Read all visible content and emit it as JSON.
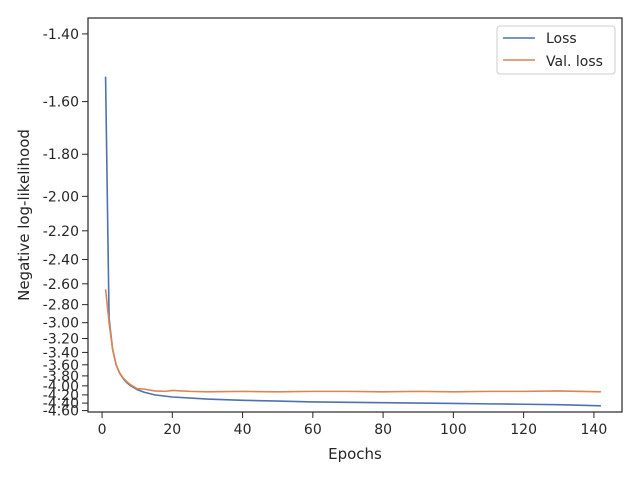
{
  "chart_data": {
    "type": "line",
    "xlabel": "Epochs",
    "ylabel": "Negative log-likelihood",
    "y_scale": "reciprocal",
    "xlim": [
      -4,
      148
    ],
    "ylim": [
      -4.64,
      -1.36
    ],
    "x_ticks": [
      0,
      20,
      40,
      60,
      80,
      100,
      120,
      140
    ],
    "x_tick_labels": [
      "0",
      "20",
      "40",
      "60",
      "80",
      "100",
      "120",
      "140"
    ],
    "y_ticks": [
      -1.4,
      -1.6,
      -1.8,
      -2.0,
      -2.2,
      -2.4,
      -2.6,
      -2.8,
      -3.0,
      -3.2,
      -3.4,
      -3.6,
      -3.8,
      -4.0,
      -4.2,
      -4.4,
      -4.6
    ],
    "y_tick_labels": [
      "-1.40",
      "-1.60",
      "-1.80",
      "-2.00",
      "-2.20",
      "-2.40",
      "-2.60",
      "-2.80",
      "-3.00",
      "-3.20",
      "-3.40",
      "-3.60",
      "-3.80",
      "-4.00",
      "-4.20",
      "-4.40",
      "-4.60"
    ],
    "grid": false,
    "legend_position": "top-right",
    "series": [
      {
        "name": "Loss",
        "color": "#4c72b0",
        "x": [
          1,
          2,
          3,
          4,
          5,
          6,
          7,
          8,
          10,
          12,
          15,
          20,
          30,
          40,
          50,
          60,
          70,
          80,
          90,
          100,
          110,
          120,
          130,
          142
        ],
        "y": [
          -1.52,
          -2.95,
          -3.35,
          -3.6,
          -3.75,
          -3.85,
          -3.93,
          -3.99,
          -4.08,
          -4.14,
          -4.2,
          -4.25,
          -4.3,
          -4.33,
          -4.35,
          -4.37,
          -4.38,
          -4.39,
          -4.4,
          -4.41,
          -4.42,
          -4.43,
          -4.44,
          -4.47
        ]
      },
      {
        "name": "Val. loss",
        "color": "#dd8452",
        "x": [
          1,
          2,
          3,
          4,
          5,
          6,
          7,
          8,
          10,
          12,
          15,
          18,
          20,
          25,
          30,
          40,
          50,
          60,
          70,
          80,
          90,
          100,
          110,
          120,
          130,
          142
        ],
        "y": [
          -2.65,
          -3.0,
          -3.35,
          -3.6,
          -3.74,
          -3.84,
          -3.91,
          -3.97,
          -4.06,
          -4.07,
          -4.11,
          -4.12,
          -4.1,
          -4.12,
          -4.13,
          -4.12,
          -4.13,
          -4.12,
          -4.12,
          -4.13,
          -4.12,
          -4.13,
          -4.12,
          -4.12,
          -4.11,
          -4.13
        ]
      }
    ]
  }
}
